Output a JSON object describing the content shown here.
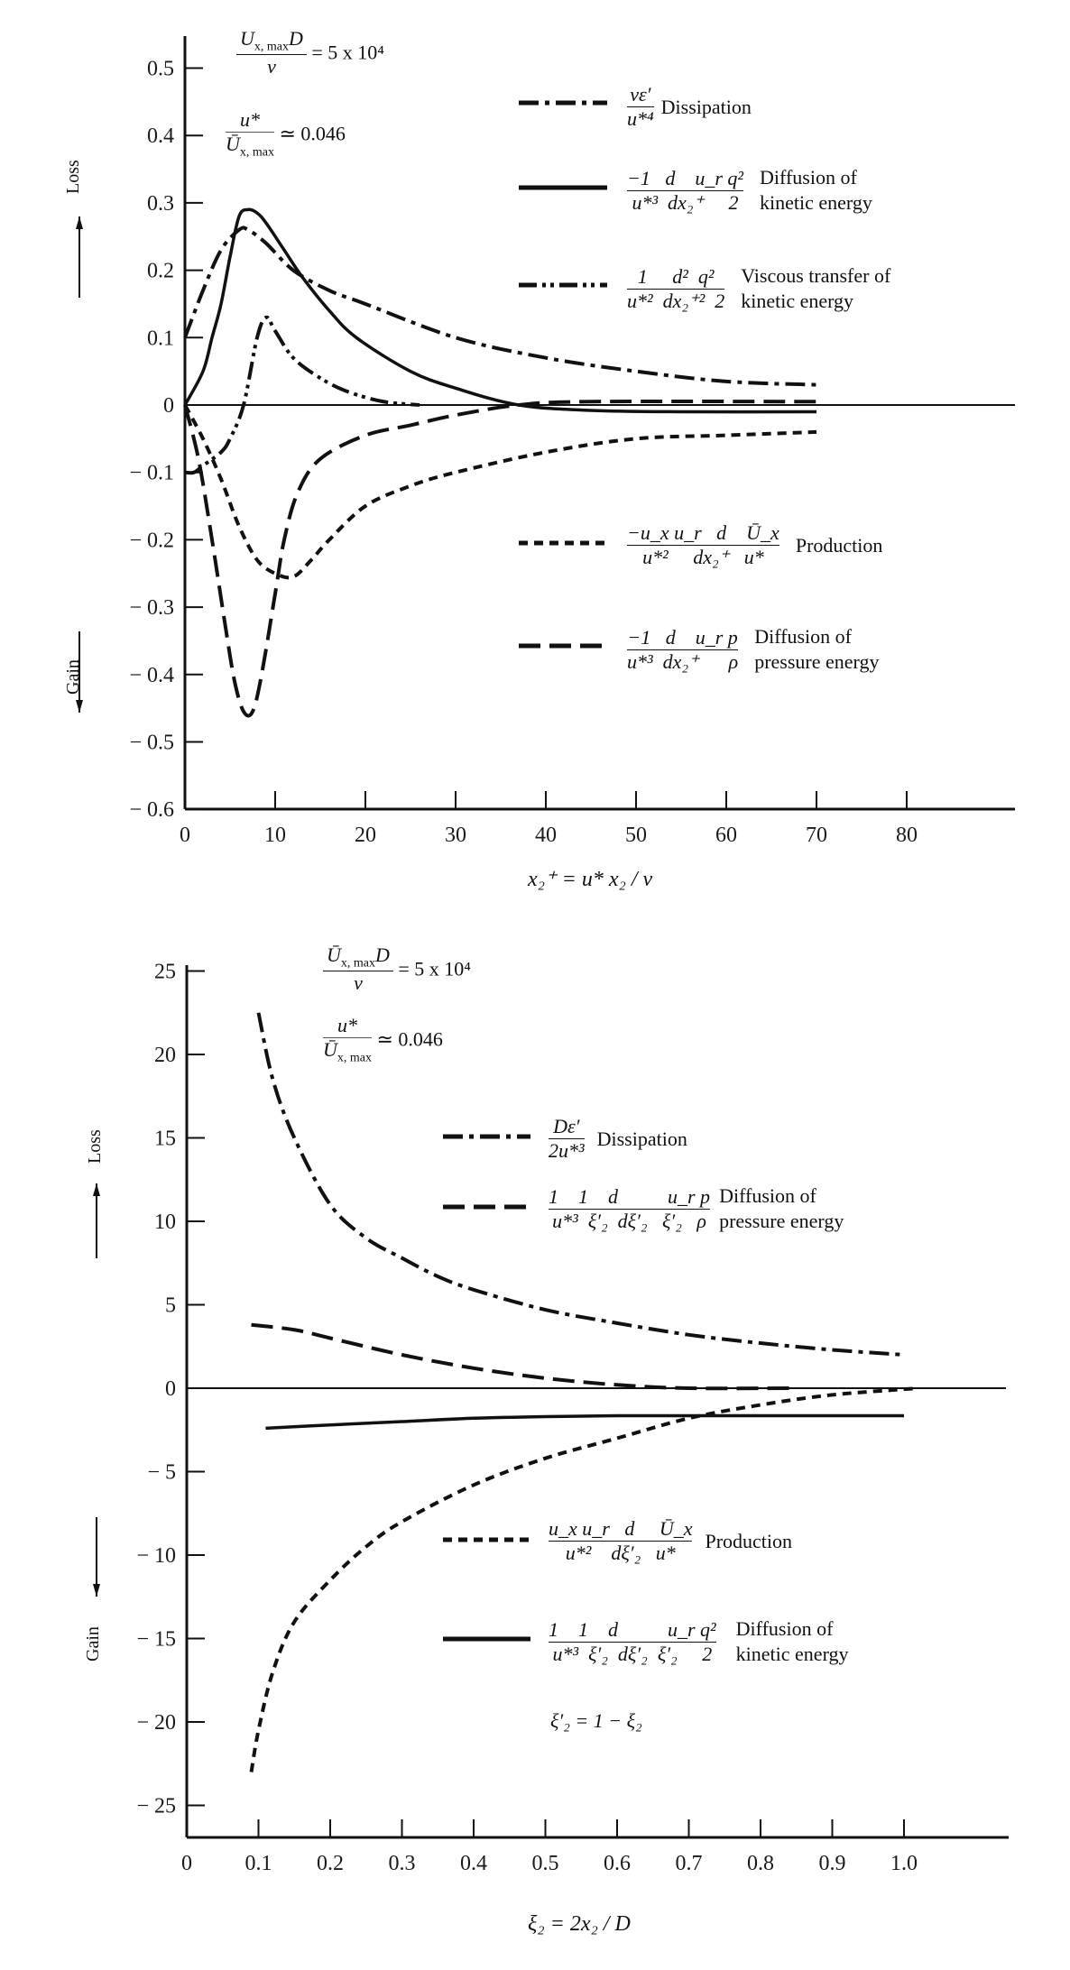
{
  "top": {
    "params": {
      "re_lhs": "U x,max D / ν",
      "re_rhs": "= 5 x 10⁴",
      "ratio_lhs": "u* / Ū x,max",
      "ratio_rhs": "≃ 0.046"
    },
    "loss_label": "Loss",
    "gain_label": "Gain",
    "xlabel": "x₂⁺ = u* x₂ / ν",
    "legend": [
      {
        "formula_num": "νε′",
        "formula_den": "u*⁴",
        "text1": "Dissipation",
        "text2": ""
      },
      {
        "formula_num": "−1   d    u_r q²",
        "formula_den": "u*³  dx₂⁺     2",
        "text1": "Diffusion of",
        "text2": "kinetic energy"
      },
      {
        "formula_num": "1     d²  q²",
        "formula_den": "u*²  dx₂⁺²  2",
        "text1": "Viscous transfer of",
        "text2": "kinetic energy"
      },
      {
        "formula_num": "−u_x u_r   d    Ū_x",
        "formula_den": "u*²     dx₂⁺   u*",
        "text1": "Production",
        "text2": ""
      },
      {
        "formula_num": "−1   d    u_r p",
        "formula_den": "u*³  dx₂⁺      ρ",
        "text1": "Diffusion of",
        "text2": "pressure energy"
      }
    ]
  },
  "bottom": {
    "params": {
      "re_lhs": "Ū x,max D / ν",
      "re_rhs": "= 5 x 10⁴",
      "ratio_lhs": "u* / Ū x,max",
      "ratio_rhs": "≃ 0.046"
    },
    "loss_label": "Loss",
    "gain_label": "Gain",
    "xlabel": "ξ₂ = 2x₂ / D",
    "note": "ξ′₂ = 1 − ξ₂",
    "legend": [
      {
        "formula_num": "Dε′",
        "formula_den": "2u*³",
        "text1": "Dissipation",
        "text2": ""
      },
      {
        "formula_num": "1    1    d          u_r p",
        "formula_den": "u*³  ξ′₂  dξ′₂   ξ′₂   ρ",
        "text1": "Diffusion of",
        "text2": "pressure energy"
      },
      {
        "formula_num": "u_x u_r   d     Ū_x",
        "formula_den": "u*²    dξ′₂   u*",
        "text1": "Production",
        "text2": ""
      },
      {
        "formula_num": "1    1    d          u_r q²",
        "formula_den": "u*³  ξ′₂  dξ′₂  ξ′₂     2",
        "text1": "Diffusion of",
        "text2": "kinetic energy"
      }
    ]
  },
  "chart_data": [
    {
      "type": "line",
      "title": "Turbulent kinetic energy balance near the wall",
      "xlabel": "x2+ = u* x2 / ν",
      "ylabel": "Loss (up) / Gain (down)",
      "xlim": [
        0,
        90
      ],
      "ylim": [
        -0.6,
        0.55
      ],
      "xticks": [
        0,
        10,
        20,
        30,
        40,
        50,
        60,
        70,
        80
      ],
      "yticks": [
        0.5,
        0.4,
        0.3,
        0.2,
        0.1,
        0,
        -0.1,
        -0.2,
        -0.3,
        -0.4,
        -0.5,
        -0.6
      ],
      "annotations": [
        "U_x,max D / ν = 5 x 10^4",
        "u* / U_x,max ≃ 0.046"
      ],
      "series": [
        {
          "name": "Dissipation",
          "style": "dash-dot",
          "x": [
            0,
            2,
            4,
            6,
            7,
            9,
            12,
            16,
            20,
            30,
            40,
            50,
            60,
            70
          ],
          "y": [
            0.1,
            0.17,
            0.23,
            0.26,
            0.26,
            0.24,
            0.2,
            0.17,
            0.15,
            0.1,
            0.07,
            0.05,
            0.035,
            0.03
          ]
        },
        {
          "name": "Diffusion of kinetic energy",
          "style": "solid",
          "x": [
            0,
            2,
            3,
            4,
            5,
            6,
            7,
            8,
            9,
            11,
            13,
            16,
            19,
            25,
            30,
            37,
            45,
            55,
            70
          ],
          "y": [
            0,
            0.05,
            0.1,
            0.15,
            0.22,
            0.28,
            0.29,
            0.285,
            0.27,
            0.23,
            0.19,
            0.14,
            0.1,
            0.05,
            0.025,
            0,
            -0.008,
            -0.01,
            -0.01
          ]
        },
        {
          "name": "Viscous transfer of kinetic energy",
          "style": "dash-dot-dot",
          "x": [
            0,
            1,
            2,
            4,
            5,
            6.5,
            8,
            9,
            10,
            12,
            15,
            18,
            22,
            26
          ],
          "y": [
            -0.1,
            -0.1,
            -0.09,
            -0.07,
            -0.05,
            0,
            0.1,
            0.13,
            0.11,
            0.07,
            0.04,
            0.02,
            0.005,
            0
          ]
        },
        {
          "name": "Production",
          "style": "short-dash",
          "x": [
            0,
            2,
            4,
            6,
            8,
            10,
            12,
            14,
            16,
            20,
            25,
            30,
            40,
            50,
            60,
            70
          ],
          "y": [
            0,
            -0.05,
            -0.11,
            -0.18,
            -0.23,
            -0.25,
            -0.255,
            -0.23,
            -0.2,
            -0.15,
            -0.12,
            -0.1,
            -0.07,
            -0.05,
            -0.045,
            -0.04
          ]
        },
        {
          "name": "Diffusion of pressure energy",
          "style": "long-dash",
          "x": [
            0,
            1.5,
            3,
            4.5,
            5.5,
            6.5,
            7.5,
            8.5,
            10,
            11,
            12.5,
            15,
            20,
            25,
            30,
            37,
            45,
            70
          ],
          "y": [
            0,
            -0.08,
            -0.2,
            -0.33,
            -0.41,
            -0.455,
            -0.455,
            -0.4,
            -0.28,
            -0.2,
            -0.13,
            -0.08,
            -0.045,
            -0.03,
            -0.015,
            0,
            0.005,
            0.005
          ]
        }
      ]
    },
    {
      "type": "line",
      "title": "Turbulent kinetic energy balance across the pipe",
      "xlabel": "ξ2 = 2x2 / D",
      "ylabel": "Loss (up) / Gain (down)",
      "xlim": [
        0,
        1.1
      ],
      "ylim": [
        -27,
        25
      ],
      "xticks": [
        0,
        0.1,
        0.2,
        0.3,
        0.4,
        0.5,
        0.6,
        0.7,
        0.8,
        0.9,
        1.0
      ],
      "yticks": [
        25,
        20,
        15,
        10,
        5,
        0,
        -5,
        -10,
        -15,
        -20,
        -25
      ],
      "annotations": [
        "U_x,max D / ν = 5 x 10^4",
        "u* / U_x,max ≃ 0.046",
        "ξ'2 = 1 − ξ2"
      ],
      "series": [
        {
          "name": "Dissipation",
          "style": "dash-dot",
          "x": [
            0.1,
            0.12,
            0.15,
            0.2,
            0.25,
            0.3,
            0.35,
            0.4,
            0.5,
            0.6,
            0.7,
            0.8,
            0.9,
            1.0
          ],
          "y": [
            22.5,
            18.5,
            15,
            11,
            9,
            7.8,
            6.7,
            5.9,
            4.7,
            3.9,
            3.2,
            2.7,
            2.3,
            2.0
          ]
        },
        {
          "name": "Diffusion of pressure energy",
          "style": "long-dash",
          "x": [
            0.09,
            0.15,
            0.2,
            0.3,
            0.4,
            0.5,
            0.6,
            0.7,
            0.85
          ],
          "y": [
            3.8,
            3.5,
            3.0,
            2.0,
            1.2,
            0.6,
            0.2,
            0.0,
            0.0
          ]
        },
        {
          "name": "Production",
          "style": "short-dash",
          "x": [
            0.09,
            0.1,
            0.12,
            0.15,
            0.2,
            0.25,
            0.3,
            0.4,
            0.5,
            0.6,
            0.7,
            0.8,
            0.9,
            1.02
          ],
          "y": [
            -23,
            -20.5,
            -17,
            -14,
            -11.5,
            -9.5,
            -8,
            -5.8,
            -4.2,
            -3.0,
            -1.8,
            -1.0,
            -0.4,
            0
          ]
        },
        {
          "name": "Diffusion of kinetic energy",
          "style": "solid",
          "x": [
            0.11,
            0.2,
            0.3,
            0.4,
            0.5,
            0.6,
            0.7,
            0.8,
            0.9,
            1.0
          ],
          "y": [
            -2.4,
            -2.2,
            -2.0,
            -1.8,
            -1.7,
            -1.65,
            -1.65,
            -1.65,
            -1.65,
            -1.65
          ]
        }
      ]
    }
  ]
}
